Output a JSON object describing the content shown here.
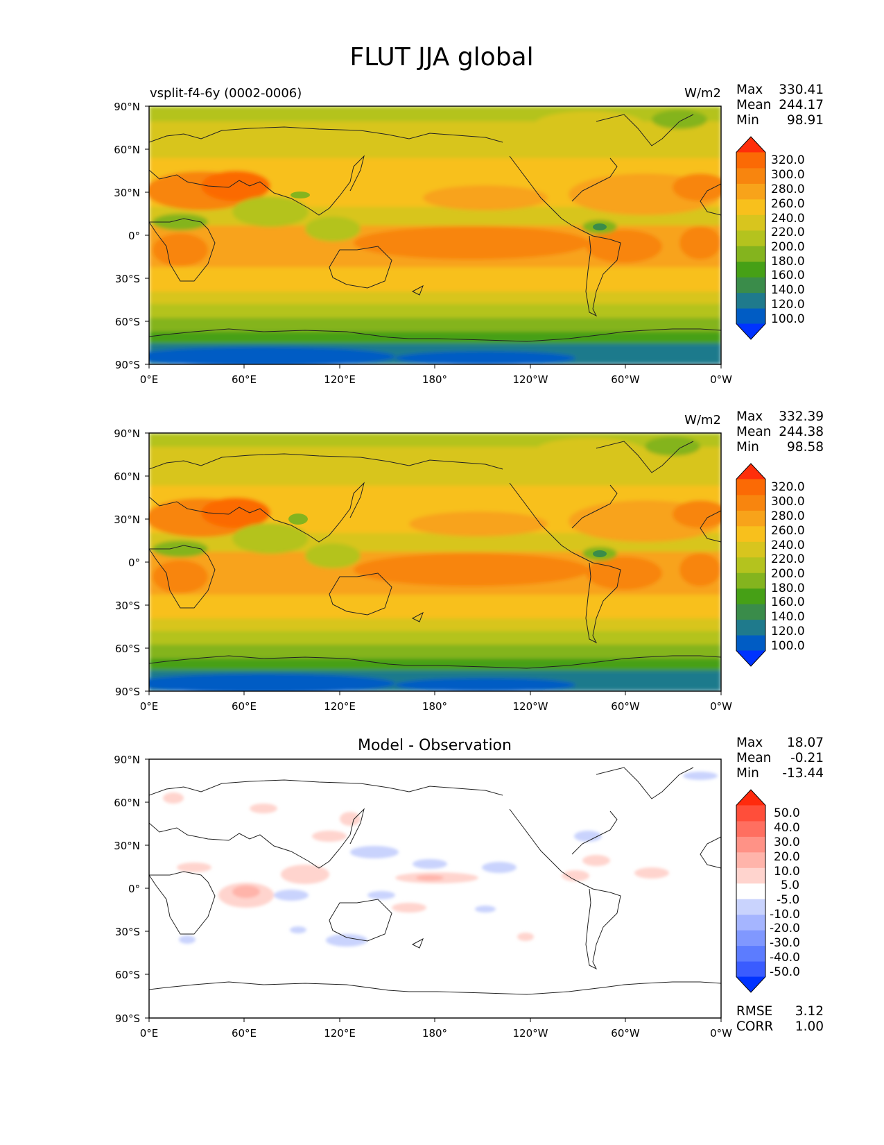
{
  "title": "FLUT JJA global",
  "colors": {
    "mean_levels": [
      "#0033ff",
      "#005cc4",
      "#1f7a8c",
      "#3a8c4a",
      "#46a016",
      "#84b41e",
      "#b4c31e",
      "#d8c51e",
      "#f8c01c",
      "#f8a31a",
      "#f8850e",
      "#fb6a05",
      "#ff2e0a"
    ],
    "diff_levels": [
      "#0033ff",
      "#3a5cff",
      "#5c7cff",
      "#8098ff",
      "#a5b5ff",
      "#c9d3fd",
      "#ffffff",
      "#ffd4ce",
      "#ffb4aa",
      "#ff9286",
      "#ff6f60",
      "#ff4e3a",
      "#ff2a0d"
    ],
    "continent_outline": "#222222"
  },
  "chart_data": [
    {
      "type": "heatmap",
      "panel": "test",
      "left_title": "vsplit-f4-6y (0002-0006)",
      "right_title": "W/m2",
      "stats": {
        "max_label": "Max",
        "max": "330.41",
        "mean_label": "Mean",
        "mean": "244.17",
        "min_label": "Min",
        "min": "98.91"
      },
      "x_ticks": [
        "0°E",
        "60°E",
        "120°E",
        "180°",
        "120°W",
        "60°W",
        "0°W"
      ],
      "y_ticks": [
        "90°N",
        "60°N",
        "30°N",
        "0°",
        "30°S",
        "60°S",
        "90°S"
      ],
      "colorbar_labels": [
        "320.0",
        "300.0",
        "280.0",
        "260.0",
        "240.0",
        "220.0",
        "200.0",
        "180.0",
        "160.0",
        "140.0",
        "120.0",
        "100.0"
      ]
    },
    {
      "type": "heatmap",
      "panel": "reference",
      "left_title": "",
      "right_title": "W/m2",
      "stats": {
        "max_label": "Max",
        "max": "332.39",
        "mean_label": "Mean",
        "mean": "244.38",
        "min_label": "Min",
        "min": "98.58"
      },
      "x_ticks": [
        "0°E",
        "60°E",
        "120°E",
        "180°",
        "120°W",
        "60°W",
        "0°W"
      ],
      "y_ticks": [
        "90°N",
        "60°N",
        "30°N",
        "0°",
        "30°S",
        "60°S",
        "90°S"
      ],
      "colorbar_labels": [
        "320.0",
        "300.0",
        "280.0",
        "260.0",
        "240.0",
        "220.0",
        "200.0",
        "180.0",
        "160.0",
        "140.0",
        "120.0",
        "100.0"
      ]
    },
    {
      "type": "heatmap",
      "panel": "difference",
      "center_title": "Model - Observation",
      "stats": {
        "max_label": "Max",
        "max": "18.07",
        "mean_label": "Mean",
        "mean": "-0.21",
        "min_label": "Min",
        "min": "-13.44"
      },
      "x_ticks": [
        "0°E",
        "60°E",
        "120°E",
        "180°",
        "120°W",
        "60°W",
        "0°W"
      ],
      "y_ticks": [
        "90°N",
        "60°N",
        "30°N",
        "0°",
        "30°S",
        "60°S",
        "90°S"
      ],
      "colorbar_labels": [
        "50.0",
        "40.0",
        "30.0",
        "20.0",
        "10.0",
        "5.0",
        "-5.0",
        "-10.0",
        "-20.0",
        "-30.0",
        "-40.0",
        "-50.0"
      ],
      "extra_stats": {
        "rmse_label": "RMSE",
        "rmse": "3.12",
        "corr_label": "CORR",
        "corr": "1.00"
      }
    }
  ]
}
